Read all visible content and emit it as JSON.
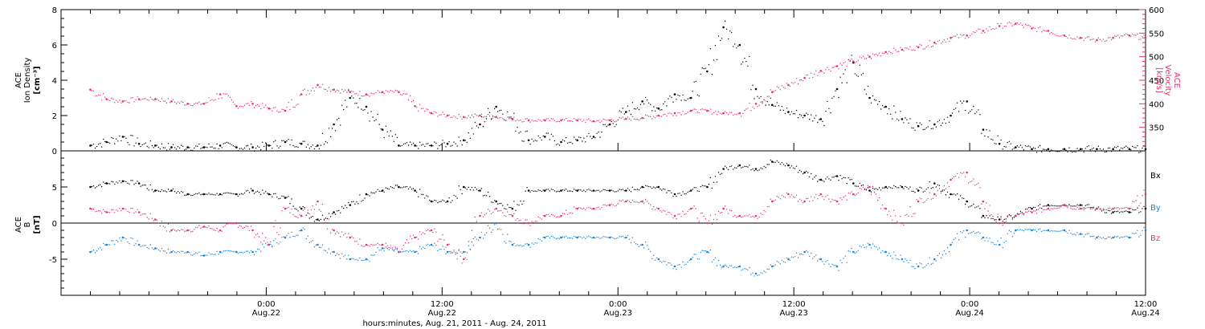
{
  "chart_data": [
    {
      "type": "scatter",
      "panel": "top",
      "ylabel_left": [
        "ACE",
        "Ion Density",
        "[cm⁻³]"
      ],
      "ylabel_right": [
        "ACE",
        "Velocity",
        "[km/s]"
      ],
      "ylim_left": [
        0,
        8
      ],
      "ylim_right": [
        300,
        600
      ],
      "yticks_left": [
        "0",
        "2",
        "4",
        "6",
        "8"
      ],
      "yticks_right": [
        "350",
        "400",
        "450",
        "500",
        "550",
        "600"
      ],
      "colors": {
        "density": "#000000",
        "velocity": "#e8336a"
      },
      "series": [
        {
          "name": "Ion Density",
          "axis": "left",
          "x": [
            0,
            1,
            2,
            3,
            4,
            5,
            6,
            7,
            8,
            9,
            10,
            11,
            12,
            13,
            14,
            15,
            16,
            17,
            18,
            19,
            20,
            21,
            22,
            23,
            24,
            25,
            26,
            27,
            28,
            29,
            30,
            31,
            32,
            33,
            34,
            35,
            36,
            37,
            38,
            39,
            40,
            41,
            42,
            43,
            44,
            45,
            46,
            47,
            48,
            49,
            50,
            51,
            52,
            53,
            54,
            55,
            56,
            57,
            58,
            59,
            60,
            61,
            62,
            63,
            64,
            65
          ],
          "values": [
            0.3,
            0.5,
            0.8,
            0.4,
            0.3,
            0.2,
            0.2,
            0.2,
            0.3,
            0.2,
            0.2,
            0.3,
            0.5,
            0.4,
            0.3,
            1.5,
            3.0,
            2.5,
            1.2,
            0.3,
            0.3,
            0.3,
            0.4,
            0.6,
            1.5,
            2.5,
            1.8,
            0.6,
            0.8,
            0.5,
            0.6,
            0.8,
            1.5,
            2.2,
            2.8,
            2.4,
            3.2,
            3.0,
            4.5,
            7.0,
            6.0,
            3.5,
            2.6,
            2.2,
            2.0,
            1.8,
            3.5,
            5.0,
            3.0,
            2.5,
            1.8,
            1.4,
            1.5,
            2.0,
            2.8,
            1.2,
            0.4,
            0.2,
            0.1,
            0.1,
            0.1,
            0.1,
            0.1,
            0.1,
            0.1,
            0.1
          ]
        },
        {
          "name": "Velocity",
          "axis": "right",
          "x": [
            0,
            1,
            2,
            3,
            4,
            5,
            6,
            7,
            8,
            9,
            10,
            11,
            12,
            13,
            14,
            15,
            16,
            17,
            18,
            19,
            20,
            21,
            22,
            23,
            24,
            25,
            26,
            27,
            28,
            29,
            30,
            31,
            32,
            33,
            34,
            35,
            36,
            37,
            38,
            39,
            40,
            41,
            42,
            43,
            44,
            45,
            46,
            47,
            48,
            49,
            50,
            51,
            52,
            53,
            54,
            55,
            56,
            57,
            58,
            59,
            60,
            61,
            62,
            63,
            64,
            65
          ],
          "values": [
            430,
            410,
            405,
            410,
            410,
            405,
            400,
            400,
            420,
            395,
            400,
            390,
            385,
            420,
            440,
            430,
            425,
            420,
            425,
            425,
            395,
            380,
            375,
            372,
            375,
            372,
            368,
            365,
            365,
            365,
            365,
            363,
            365,
            368,
            370,
            375,
            380,
            385,
            385,
            380,
            380,
            400,
            425,
            440,
            455,
            470,
            480,
            490,
            500,
            510,
            515,
            520,
            530,
            540,
            545,
            555,
            565,
            570,
            560,
            555,
            545,
            540,
            535,
            540,
            545,
            540
          ]
        }
      ]
    },
    {
      "type": "scatter",
      "panel": "bottom",
      "ylabel": [
        "ACE",
        "B",
        "[nT]"
      ],
      "ylim": [
        -10,
        10
      ],
      "yticks": [
        "-5",
        "0",
        "5"
      ],
      "series": [
        {
          "name": "Bx",
          "color": "#000000",
          "x": [
            0,
            1,
            2,
            3,
            4,
            5,
            6,
            7,
            8,
            9,
            10,
            11,
            12,
            13,
            14,
            15,
            16,
            17,
            18,
            19,
            20,
            21,
            22,
            23,
            24,
            25,
            26,
            27,
            28,
            29,
            30,
            31,
            32,
            33,
            34,
            35,
            36,
            37,
            38,
            39,
            40,
            41,
            42,
            43,
            44,
            45,
            46,
            47,
            48,
            49,
            50,
            51,
            52,
            53,
            54,
            55,
            56,
            57,
            58,
            59,
            60,
            61,
            62,
            63,
            64,
            65
          ],
          "values": [
            5,
            5.5,
            5.8,
            5.5,
            4.5,
            4.5,
            4,
            4,
            4,
            4,
            4.5,
            4,
            3.5,
            2,
            0.5,
            1.5,
            2.5,
            4,
            4.5,
            5,
            4.5,
            3,
            3,
            5,
            4.5,
            3,
            2,
            4.5,
            4.5,
            4.5,
            4.5,
            4.5,
            4.5,
            4.5,
            5,
            5,
            4,
            4.5,
            5,
            7.5,
            8,
            7.5,
            8.5,
            8,
            7,
            6,
            6.5,
            5.5,
            4.5,
            5,
            5,
            4.5,
            5.5,
            4,
            3,
            1,
            0.5,
            1,
            2,
            2.5,
            2.5,
            2.5,
            2,
            1.5,
            1.5,
            2
          ]
        },
        {
          "name": "By",
          "color": "#1a82d9",
          "x": [
            0,
            1,
            2,
            3,
            4,
            5,
            6,
            7,
            8,
            9,
            10,
            11,
            12,
            13,
            14,
            15,
            16,
            17,
            18,
            19,
            20,
            21,
            22,
            23,
            24,
            25,
            26,
            27,
            28,
            29,
            30,
            31,
            32,
            33,
            34,
            35,
            36,
            37,
            38,
            39,
            40,
            41,
            42,
            43,
            44,
            45,
            46,
            47,
            48,
            49,
            50,
            51,
            52,
            53,
            54,
            55,
            56,
            57,
            58,
            59,
            60,
            61,
            62,
            63,
            64,
            65
          ],
          "values": [
            -4,
            -3,
            -2,
            -3,
            -3.5,
            -4,
            -4,
            -4.5,
            -4,
            -4,
            -4,
            -3,
            -2,
            -1,
            -3,
            -4,
            -5,
            -5,
            -3.5,
            -4,
            -4,
            -3,
            -4,
            -4,
            -2,
            0,
            -3,
            -3,
            -2,
            -2,
            -2,
            -2,
            -2,
            -2,
            -3,
            -5,
            -6,
            -5,
            -4,
            -6,
            -6,
            -7,
            -6,
            -5,
            -4,
            -5,
            -6,
            -4,
            -3,
            -4,
            -5,
            -6,
            -5,
            -3,
            -1,
            -2,
            -3,
            -1,
            -1,
            -1,
            -1,
            -1.5,
            -2,
            -2,
            -2,
            -1
          ]
        },
        {
          "name": "Bz",
          "color": "#e8336a",
          "x": [
            0,
            1,
            2,
            3,
            4,
            5,
            6,
            7,
            8,
            9,
            10,
            11,
            12,
            13,
            14,
            15,
            16,
            17,
            18,
            19,
            20,
            21,
            22,
            23,
            24,
            25,
            26,
            27,
            28,
            29,
            30,
            31,
            32,
            33,
            34,
            35,
            36,
            37,
            38,
            39,
            40,
            41,
            42,
            43,
            44,
            45,
            46,
            47,
            48,
            49,
            50,
            51,
            52,
            53,
            54,
            55,
            56,
            57,
            58,
            59,
            60,
            61,
            62,
            63,
            64,
            65
          ],
          "values": [
            2,
            1.5,
            2,
            1.5,
            0.5,
            -1,
            -1,
            -0.5,
            -1,
            0,
            -1,
            -3,
            2,
            1,
            3,
            -1,
            -2,
            -3,
            -3,
            -4,
            -2,
            -1,
            -3,
            -5,
            1,
            2,
            1,
            0,
            1,
            1,
            2,
            2,
            2.5,
            3,
            3,
            2,
            1,
            2,
            0,
            2,
            1,
            1,
            3,
            4,
            3,
            4,
            3,
            4,
            5,
            2,
            0,
            3,
            4,
            6,
            7,
            3,
            0,
            1,
            1.5,
            2,
            2.5,
            2,
            2,
            2,
            2,
            4
          ]
        }
      ]
    }
  ],
  "x_axis": {
    "ticks": [
      {
        "time": "0:00",
        "date": "Aug.22"
      },
      {
        "time": "12:00",
        "date": "Aug.22"
      },
      {
        "time": "0:00",
        "date": "Aug.23"
      },
      {
        "time": "12:00",
        "date": "Aug.23"
      },
      {
        "time": "0:00",
        "date": "Aug.24"
      },
      {
        "time": "12:00",
        "date": "Aug.24"
      }
    ],
    "xlabel": "hours:minutes, Aug. 21, 2011 - Aug. 24, 2011",
    "xlim_hours": [
      -14,
      60
    ],
    "tick_hours": [
      0,
      12,
      24,
      36,
      48,
      60
    ]
  },
  "legend": {
    "bx": "Bx",
    "by": "By",
    "bz": "Bz"
  }
}
